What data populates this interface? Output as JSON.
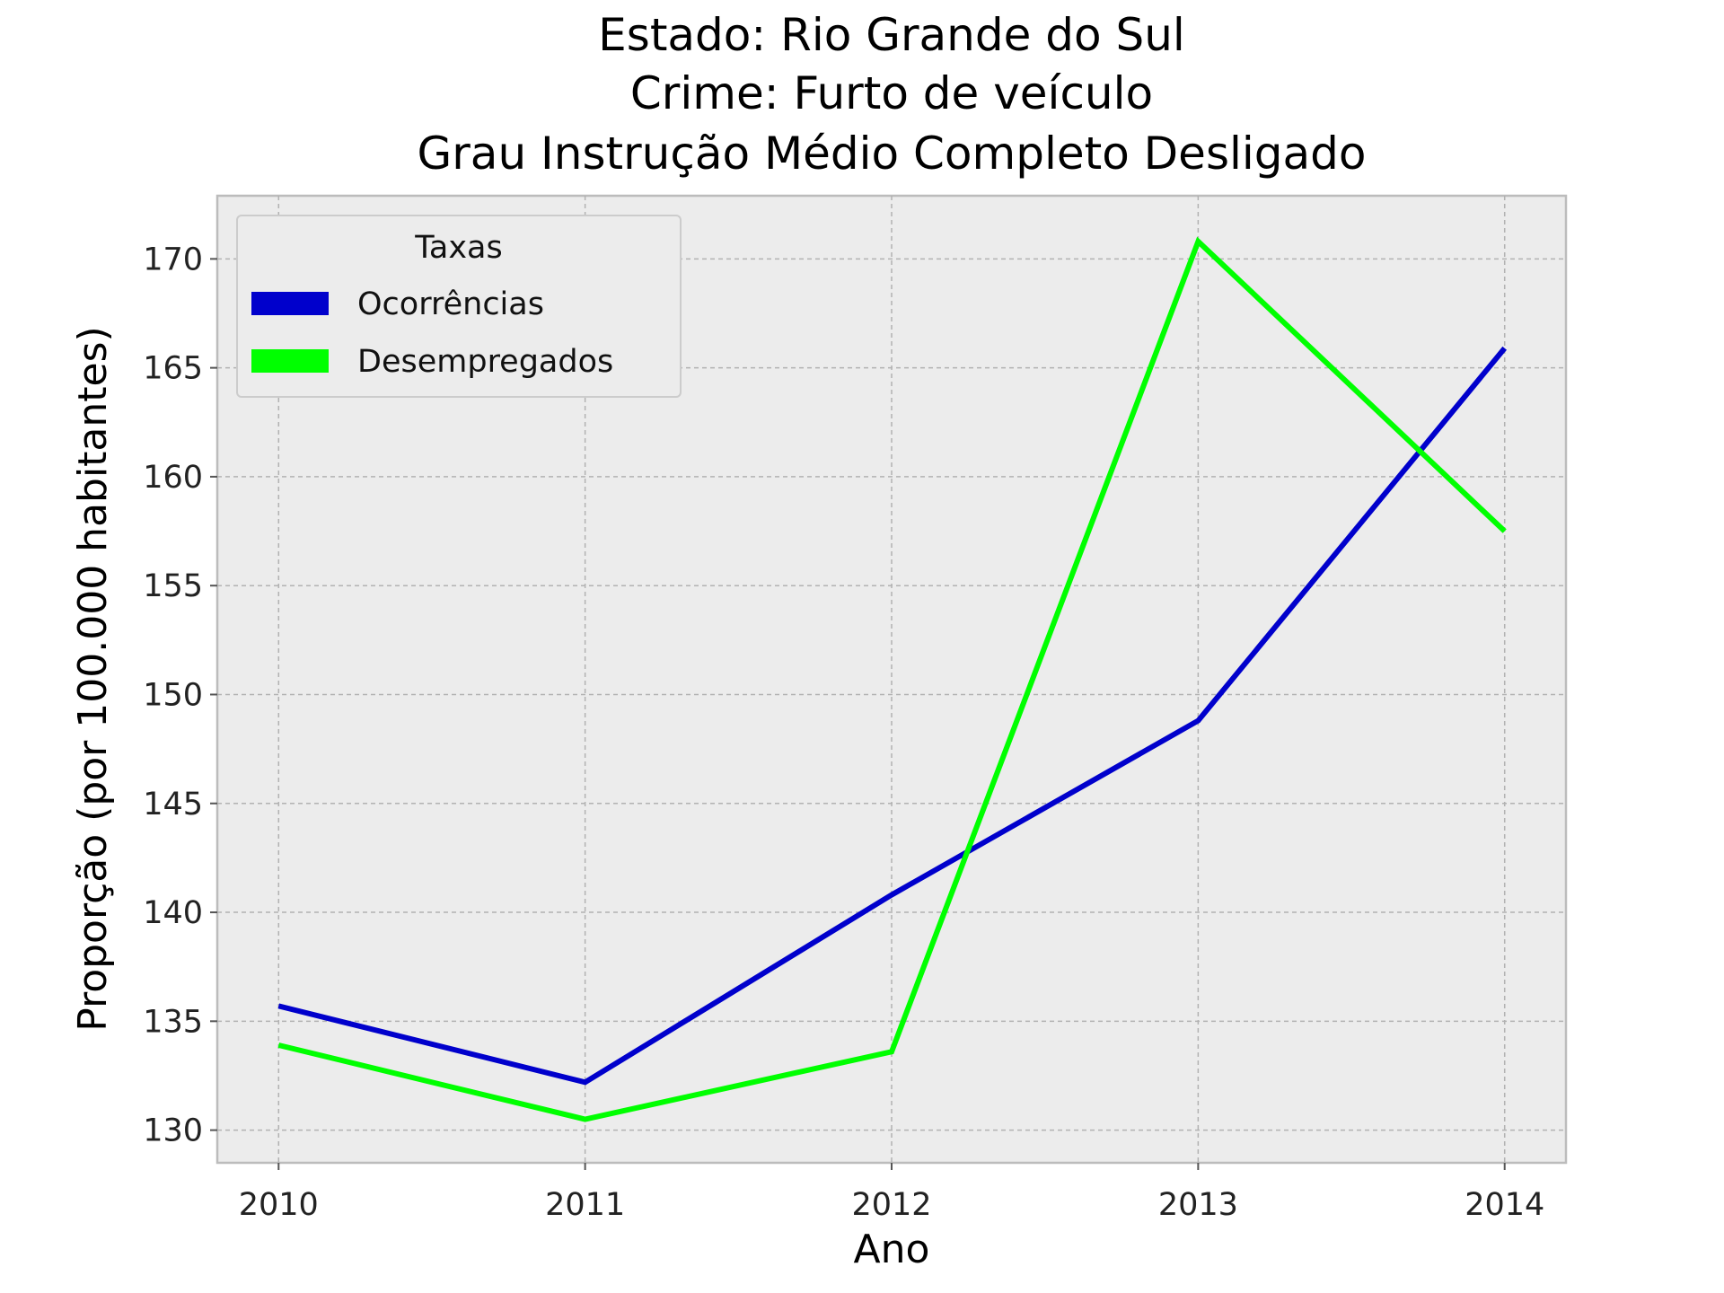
{
  "chart_data": {
    "type": "line",
    "title_lines": [
      "Estado: Rio Grande do Sul",
      "Crime: Furto de veículo",
      "Grau Instrução  Médio Completo   Desligado"
    ],
    "xlabel": "Ano",
    "ylabel": "Proporção (por 100.000 habitantes)",
    "x": [
      2010,
      2011,
      2012,
      2013,
      2014
    ],
    "x_tick_labels": [
      "2010",
      "2011",
      "2012",
      "2013",
      "2014"
    ],
    "xlim": [
      2009.8,
      2014.2
    ],
    "y_ticks": [
      130,
      135,
      140,
      145,
      150,
      155,
      160,
      165,
      170
    ],
    "y_tick_labels": [
      "130",
      "135",
      "140",
      "145",
      "150",
      "155",
      "160",
      "165",
      "170"
    ],
    "ylim": [
      128.5,
      172.9
    ],
    "grid": true,
    "legend": {
      "title": "Taxas",
      "placement": "top-left"
    },
    "series": [
      {
        "name": "Ocorrências",
        "color": "#0000cc",
        "values": [
          135.7,
          132.2,
          140.8,
          148.8,
          165.9
        ]
      },
      {
        "name": "Desempregados",
        "color": "#00ff00",
        "values": [
          133.9,
          130.5,
          133.6,
          170.8,
          157.5
        ]
      }
    ]
  }
}
